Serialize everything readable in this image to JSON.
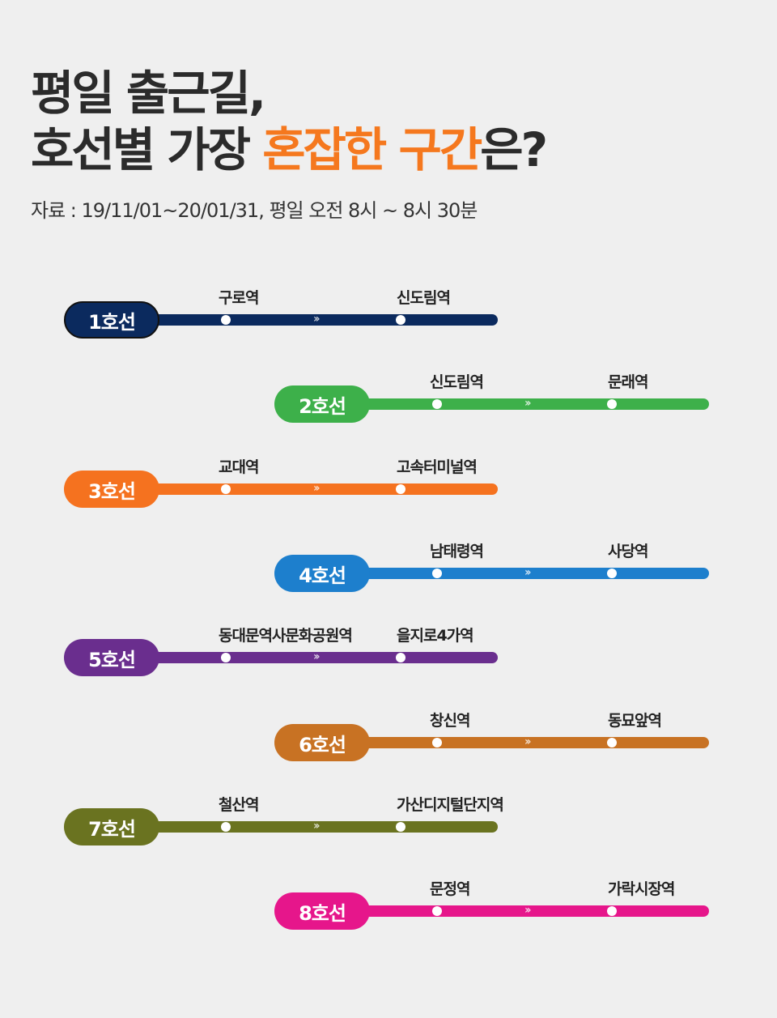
{
  "title": {
    "line1": "평일 출근길,",
    "line2_prefix": "호선별 가장 ",
    "line2_highlight": "혼잡한 구간",
    "line2_suffix": "은?"
  },
  "source": "자료 : 19/11/01~20/01/31, 평일 오전 8시 ~ 8시 30분",
  "colors": {
    "highlight": "#f5781e",
    "background": "#efefef"
  },
  "lines": [
    {
      "label": "1호선",
      "color": "#0b2a5e",
      "from": "구로역",
      "to": "신도림역"
    },
    {
      "label": "2호선",
      "color": "#3db04a",
      "from": "신도림역",
      "to": "문래역"
    },
    {
      "label": "3호선",
      "color": "#f5721f",
      "from": "교대역",
      "to": "고속터미널역"
    },
    {
      "label": "4호선",
      "color": "#1d7fcd",
      "from": "남태령역",
      "to": "사당역"
    },
    {
      "label": "5호선",
      "color": "#6a2e8e",
      "from": "동대문역사문화공원역",
      "to": "을지로4가역"
    },
    {
      "label": "6호선",
      "color": "#c87223",
      "from": "창신역",
      "to": "동묘앞역"
    },
    {
      "label": "7호선",
      "color": "#6a7320",
      "from": "철산역",
      "to": "가산디지털단지역"
    },
    {
      "label": "8호선",
      "color": "#e6168b",
      "from": "문정역",
      "to": "가락시장역"
    }
  ]
}
